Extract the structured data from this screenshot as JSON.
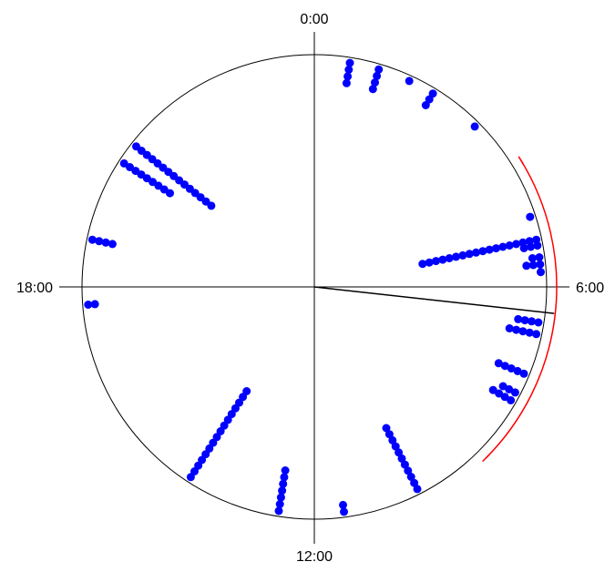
{
  "chart_data": {
    "type": "scatter",
    "subtype": "circular",
    "title": "",
    "tick_labels": [
      "0:00",
      "6:00",
      "12:00",
      "18:00"
    ],
    "axis_range_hours": [
      0,
      24
    ],
    "point_color": "#0000ff",
    "mean_vector": {
      "hour": 6.42,
      "length": 0.91,
      "color": "#000000"
    },
    "confidence_arc": {
      "start_hour": 3.9,
      "end_hour": 9.0,
      "color": "#ff0000"
    },
    "points": [
      {
        "hour": 0.6,
        "stack": 4
      },
      {
        "hour": 1.1,
        "stack": 4
      },
      {
        "hour": 1.65,
        "stack": 1
      },
      {
        "hour": 2.1,
        "stack": 3
      },
      {
        "hour": 3.0,
        "stack": 1
      },
      {
        "hour": 4.8,
        "stack": 1
      },
      {
        "hour": 5.2,
        "stack": 18
      },
      {
        "hour": 5.3,
        "stack": 3
      },
      {
        "hour": 5.5,
        "stack": 2
      },
      {
        "hour": 5.62,
        "stack": 3
      },
      {
        "hour": 5.75,
        "stack": 1
      },
      {
        "hour": 6.6,
        "stack": 4
      },
      {
        "hour": 6.8,
        "stack": 5
      },
      {
        "hour": 7.5,
        "stack": 5
      },
      {
        "hour": 7.85,
        "stack": 3
      },
      {
        "hour": 8.0,
        "stack": 4
      },
      {
        "hour": 10.2,
        "stack": 11
      },
      {
        "hour": 11.5,
        "stack": 2
      },
      {
        "hour": 12.6,
        "stack": 7
      },
      {
        "hour": 14.2,
        "stack": 16
      },
      {
        "hour": 17.7,
        "stack": 2
      },
      {
        "hour": 18.8,
        "stack": 4
      },
      {
        "hour": 20.2,
        "stack": 9
      },
      {
        "hour": 20.55,
        "stack": 15
      }
    ]
  }
}
